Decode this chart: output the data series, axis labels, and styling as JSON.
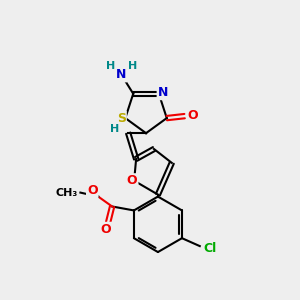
{
  "bg_color": "#eeeeee",
  "C": "#000000",
  "N": "#0000cc",
  "O": "#ee0000",
  "S": "#bbaa00",
  "Cl": "#00aa00",
  "H": "#008888",
  "lw": 1.5,
  "fs": 9,
  "fs_small": 8
}
